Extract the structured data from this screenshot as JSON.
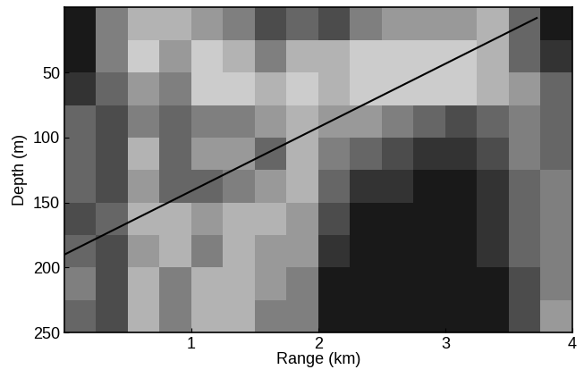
{
  "chart_data": {
    "type": "heatmap",
    "x_label": "Range (km)",
    "y_label": "Depth (m)",
    "xlim": [
      0,
      4
    ],
    "ylim": [
      250,
      0
    ],
    "xticks": [
      1,
      2,
      3,
      4
    ],
    "yticks": [
      50,
      100,
      150,
      200,
      250
    ],
    "x_edges": [
      0,
      0.25,
      0.5,
      0.75,
      1,
      1.25,
      1.5,
      1.75,
      2,
      2.25,
      2.5,
      2.75,
      3,
      3.25,
      3.5,
      3.75,
      4
    ],
    "y_edges": [
      0,
      25,
      50,
      75,
      100,
      125,
      150,
      175,
      200,
      225,
      250
    ],
    "zlim": [
      0,
      1
    ],
    "cells": [
      [
        0.9,
        0.5,
        0.3,
        0.3,
        0.4,
        0.5,
        0.7,
        0.6,
        0.7,
        0.5,
        0.4,
        0.4,
        0.4,
        0.3,
        0.6,
        0.9
      ],
      [
        0.9,
        0.5,
        0.2,
        0.4,
        0.2,
        0.3,
        0.5,
        0.3,
        0.3,
        0.2,
        0.2,
        0.2,
        0.2,
        0.3,
        0.6,
        0.8
      ],
      [
        0.8,
        0.6,
        0.4,
        0.5,
        0.2,
        0.2,
        0.3,
        0.2,
        0.3,
        0.2,
        0.2,
        0.2,
        0.2,
        0.3,
        0.4,
        0.6
      ],
      [
        0.6,
        0.7,
        0.5,
        0.6,
        0.5,
        0.5,
        0.4,
        0.3,
        0.4,
        0.4,
        0.5,
        0.6,
        0.7,
        0.6,
        0.5,
        0.6
      ],
      [
        0.6,
        0.7,
        0.3,
        0.6,
        0.4,
        0.4,
        0.6,
        0.3,
        0.5,
        0.6,
        0.7,
        0.8,
        0.8,
        0.7,
        0.5,
        0.6
      ],
      [
        0.6,
        0.7,
        0.4,
        0.6,
        0.6,
        0.5,
        0.4,
        0.3,
        0.6,
        0.8,
        0.8,
        0.9,
        0.9,
        0.8,
        0.6,
        0.5
      ],
      [
        0.7,
        0.6,
        0.3,
        0.3,
        0.4,
        0.3,
        0.3,
        0.4,
        0.7,
        0.9,
        0.9,
        0.9,
        0.9,
        0.8,
        0.6,
        0.5
      ],
      [
        0.6,
        0.7,
        0.4,
        0.3,
        0.5,
        0.3,
        0.4,
        0.4,
        0.8,
        0.9,
        0.9,
        0.9,
        0.9,
        0.8,
        0.6,
        0.5
      ],
      [
        0.5,
        0.7,
        0.3,
        0.5,
        0.3,
        0.3,
        0.4,
        0.5,
        0.9,
        0.9,
        0.9,
        0.9,
        0.9,
        0.9,
        0.7,
        0.5
      ],
      [
        0.6,
        0.7,
        0.3,
        0.5,
        0.3,
        0.3,
        0.5,
        0.5,
        0.9,
        0.9,
        0.9,
        0.9,
        0.9,
        0.9,
        0.7,
        0.4
      ]
    ],
    "line": {
      "x": [
        0.0,
        3.72
      ],
      "y": [
        190,
        8
      ],
      "color": "#000000"
    }
  }
}
